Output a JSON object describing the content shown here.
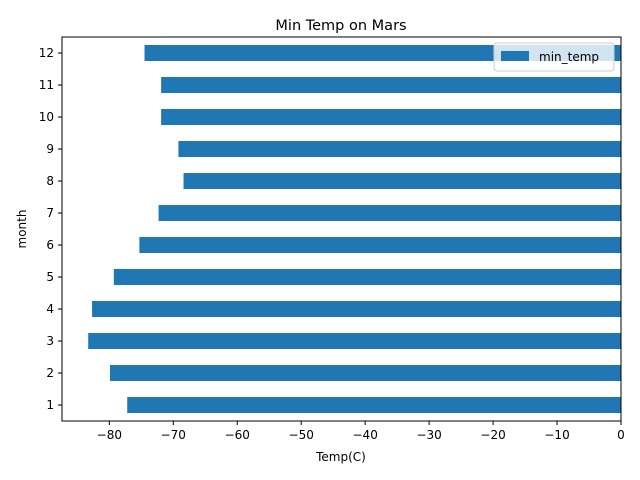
{
  "chart_data": {
    "type": "bar",
    "orientation": "horizontal",
    "title": "Min Temp on Mars",
    "xlabel": "Temp(C)",
    "ylabel": "month",
    "categories": [
      "1",
      "2",
      "3",
      "4",
      "5",
      "6",
      "7",
      "8",
      "9",
      "10",
      "11",
      "12"
    ],
    "series": [
      {
        "name": "min_temp",
        "color": "#1f77b4",
        "values": [
          -77.2,
          -79.9,
          -83.3,
          -82.7,
          -79.3,
          -75.3,
          -72.3,
          -68.4,
          -69.2,
          -71.9,
          -71.9,
          -74.5
        ]
      }
    ],
    "xlim": [
      -87.4,
      0
    ],
    "xticks": [
      -80,
      -70,
      -60,
      -50,
      -40,
      -30,
      -20,
      -10,
      0
    ],
    "xtick_labels": [
      "−80",
      "−70",
      "−60",
      "−50",
      "−40",
      "−30",
      "−20",
      "−10",
      "0"
    ],
    "grid": false,
    "legend_position": "top-right"
  }
}
